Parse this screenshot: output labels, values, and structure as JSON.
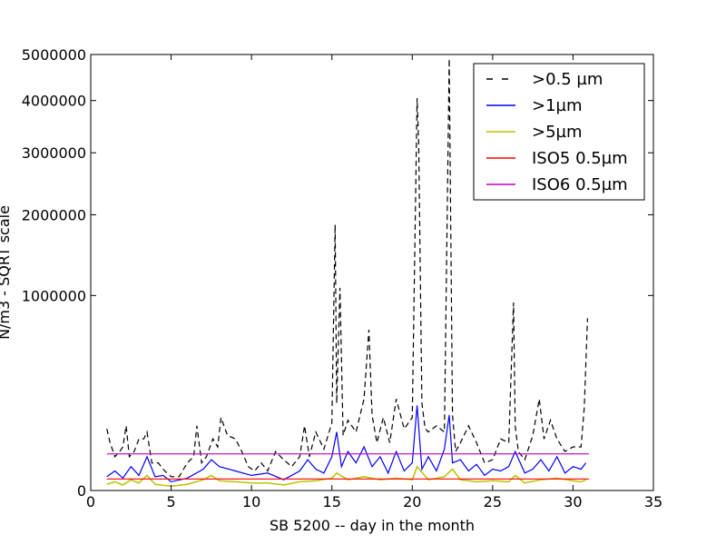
{
  "chart_data": {
    "type": "line",
    "title": "",
    "xlabel": "SB 5200 -- day in the month",
    "ylabel": "N/m3 - SQRT scale",
    "yscale": "sqrt",
    "xlim": [
      0,
      35
    ],
    "ylim": [
      0,
      5000000
    ],
    "x_ticks": [
      0,
      5,
      10,
      15,
      20,
      25,
      30,
      35
    ],
    "x_tick_labels": [
      "0",
      "5",
      "10",
      "15",
      "20",
      "25",
      "30",
      "35"
    ],
    "y_ticks": [
      0,
      1000000,
      2000000,
      3000000,
      4000000,
      5000000
    ],
    "y_tick_labels": [
      "0",
      "1000000",
      "2000000",
      "3000000",
      "4000000",
      "5000000"
    ],
    "grid": false,
    "legend_position": "top-right",
    "series": [
      {
        "name": ">0.5 µm",
        "color": "#000000",
        "style": "dashed",
        "x": [
          1.0,
          1.2,
          1.5,
          1.8,
          2.0,
          2.2,
          2.4,
          2.7,
          3.0,
          3.3,
          3.5,
          3.8,
          4.2,
          4.6,
          5.0,
          5.5,
          6.0,
          6.4,
          6.6,
          6.9,
          7.2,
          7.6,
          7.9,
          8.1,
          8.5,
          9.0,
          9.4,
          9.8,
          10.2,
          10.6,
          11.0,
          11.5,
          12.0,
          12.5,
          13.0,
          13.3,
          13.6,
          14.0,
          14.5,
          15.0,
          15.2,
          15.3,
          15.5,
          15.7,
          16.0,
          16.5,
          17.0,
          17.3,
          17.5,
          17.8,
          18.2,
          18.6,
          19.0,
          19.5,
          20.0,
          20.3,
          20.4,
          20.6,
          20.8,
          21.0,
          21.5,
          22.0,
          22.3,
          22.5,
          22.7,
          23.0,
          23.5,
          24.0,
          24.5,
          25.0,
          25.5,
          26.0,
          26.3,
          26.4,
          26.6,
          27.0,
          27.5,
          27.9,
          28.2,
          28.6,
          29.0,
          29.5,
          30.0,
          30.5,
          30.7,
          30.9
        ],
        "values": [
          100000,
          60000,
          30000,
          40000,
          50000,
          110000,
          30000,
          40000,
          70000,
          70000,
          90000,
          20000,
          20000,
          10000,
          5000,
          5000,
          20000,
          30000,
          110000,
          20000,
          30000,
          70000,
          50000,
          140000,
          80000,
          70000,
          40000,
          15000,
          10000,
          20000,
          10000,
          40000,
          25000,
          15000,
          30000,
          110000,
          30000,
          90000,
          45000,
          120000,
          1860000,
          200000,
          1080000,
          80000,
          130000,
          90000,
          220000,
          680000,
          150000,
          60000,
          140000,
          60000,
          220000,
          100000,
          140000,
          4050000,
          3150000,
          200000,
          100000,
          90000,
          110000,
          90000,
          4900000,
          150000,
          40000,
          60000,
          110000,
          60000,
          20000,
          25000,
          70000,
          60000,
          930000,
          110000,
          40000,
          25000,
          80000,
          220000,
          70000,
          130000,
          70000,
          40000,
          50000,
          50000,
          180000,
          780000
        ]
      },
      {
        "name": ">1µm",
        "color": "#0000ff",
        "style": "solid",
        "x": [
          1.0,
          1.5,
          2.0,
          2.5,
          3.0,
          3.5,
          4.0,
          4.5,
          5.0,
          6.0,
          7.0,
          7.5,
          8.0,
          9.0,
          10.0,
          11.0,
          12.0,
          13.0,
          13.5,
          14.0,
          14.5,
          15.0,
          15.3,
          15.6,
          16.0,
          16.5,
          17.0,
          17.5,
          18.0,
          18.5,
          19.0,
          19.5,
          20.0,
          20.3,
          20.6,
          21.0,
          21.5,
          22.0,
          22.3,
          22.5,
          23.0,
          23.5,
          24.0,
          24.5,
          25.0,
          25.5,
          26.0,
          26.4,
          27.0,
          27.5,
          28.0,
          28.5,
          29.0,
          29.5,
          30.0,
          30.5,
          30.8
        ],
        "values": [
          5000,
          10000,
          4000,
          15000,
          6000,
          30000,
          5000,
          6000,
          2000,
          4000,
          12000,
          25000,
          15000,
          10000,
          6000,
          8000,
          3000,
          10000,
          25000,
          12000,
          8000,
          30000,
          90000,
          15000,
          40000,
          20000,
          50000,
          15000,
          30000,
          8000,
          40000,
          10000,
          20000,
          190000,
          12000,
          30000,
          10000,
          45000,
          150000,
          20000,
          25000,
          10000,
          18000,
          6000,
          12000,
          10000,
          15000,
          40000,
          8000,
          12000,
          25000,
          10000,
          30000,
          8000,
          15000,
          12000,
          20000
        ]
      },
      {
        "name": ">5µm",
        "color": "#bfbf00",
        "style": "solid",
        "x": [
          1.0,
          1.5,
          2.0,
          2.5,
          3.0,
          3.5,
          4.0,
          5.0,
          6.0,
          7.0,
          7.5,
          8.0,
          9.0,
          10.0,
          11.0,
          12.0,
          13.0,
          14.0,
          15.0,
          15.3,
          16.0,
          17.0,
          18.0,
          19.0,
          20.0,
          20.3,
          21.0,
          22.0,
          22.5,
          23.0,
          24.0,
          25.0,
          26.0,
          26.4,
          27.0,
          28.0,
          29.0,
          30.0,
          30.5,
          30.8
        ],
        "values": [
          1000,
          2000,
          800,
          3000,
          1500,
          6000,
          1000,
          500,
          1000,
          3000,
          6000,
          2500,
          2000,
          1500,
          1500,
          800,
          2000,
          2500,
          4000,
          8000,
          3000,
          5000,
          3000,
          4000,
          3000,
          15000,
          3000,
          5000,
          12000,
          3000,
          2000,
          2500,
          2000,
          6000,
          1500,
          3000,
          4000,
          2500,
          2000,
          3000
        ]
      },
      {
        "name": "ISO5 0.5µm",
        "color": "#ff0000",
        "style": "solid",
        "x": [
          1.0,
          31.0
        ],
        "values": [
          3520,
          3520
        ]
      },
      {
        "name": "ISO6 0.5µm",
        "color": "#bf00bf",
        "style": "solid",
        "x": [
          1.0,
          31.0
        ],
        "values": [
          35200,
          35200
        ]
      }
    ]
  }
}
